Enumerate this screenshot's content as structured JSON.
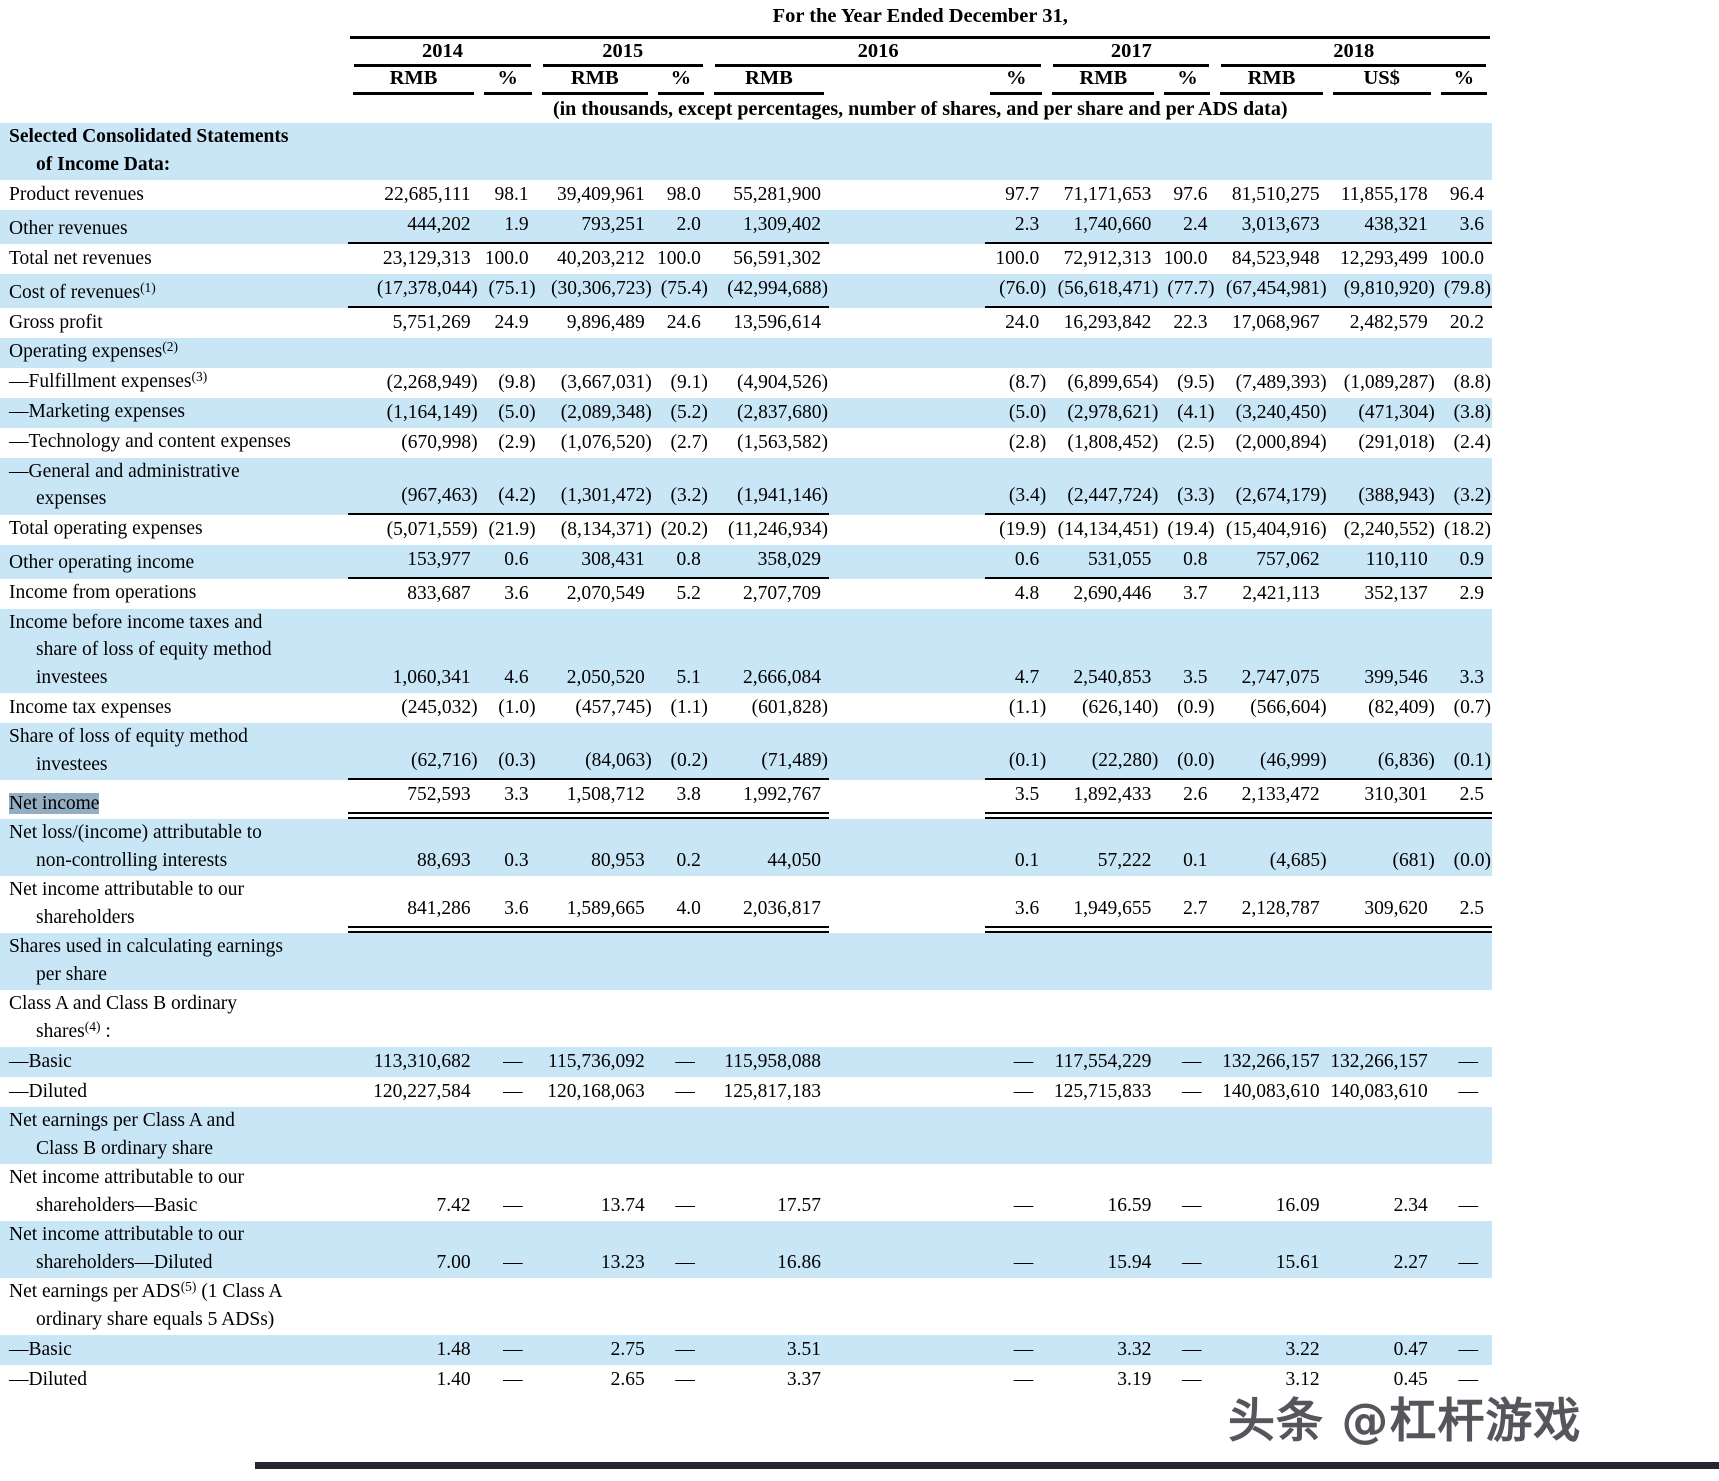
{
  "header": {
    "title": "For the Year Ended December 31,",
    "years": [
      "2014",
      "2015",
      "2016",
      "2017",
      "2018"
    ],
    "units": [
      "RMB",
      "%",
      "RMB",
      "%",
      "RMB",
      "%",
      "RMB",
      "%",
      "RMB",
      "US$",
      "%"
    ],
    "note": "(in thousands, except percentages, number of shares, and per share and per ADS data)"
  },
  "rows": [
    {
      "label": "Selected Consolidated Statements\nof Income Data:",
      "bg": "blue",
      "bold": true,
      "values": []
    },
    {
      "label": "Product revenues",
      "bg": "white",
      "values": [
        "22,685,111",
        "98.1",
        "39,409,961",
        "98.0",
        "55,281,900",
        "97.7",
        "71,171,653",
        "97.6",
        "81,510,275",
        "11,855,178",
        "96.4"
      ]
    },
    {
      "label": "Other revenues",
      "bg": "blue",
      "border": "single",
      "values": [
        "444,202",
        "1.9",
        "793,251",
        "2.0",
        "1,309,402",
        "2.3",
        "1,740,660",
        "2.4",
        "3,013,673",
        "438,321",
        "3.6"
      ]
    },
    {
      "label": "Total net revenues",
      "bg": "white",
      "values": [
        "23,129,313",
        "100.0",
        "40,203,212",
        "100.0",
        "56,591,302",
        "100.0",
        "72,912,313",
        "100.0",
        "84,523,948",
        "12,293,499",
        "100.0"
      ]
    },
    {
      "label": "Cost of revenues^(1)",
      "bg": "blue",
      "border": "single",
      "values": [
        "(17,378,044)",
        "(75.1)",
        "(30,306,723)",
        "(75.4)",
        "(42,994,688)",
        "(76.0)",
        "(56,618,471)",
        "(77.7)",
        "(67,454,981)",
        "(9,810,920)",
        "(79.8)"
      ]
    },
    {
      "label": "Gross profit",
      "bg": "white",
      "values": [
        "5,751,269",
        "24.9",
        "9,896,489",
        "24.6",
        "13,596,614",
        "24.0",
        "16,293,842",
        "22.3",
        "17,068,967",
        "2,482,579",
        "20.2"
      ]
    },
    {
      "label": "Operating expenses^(2)",
      "bg": "blue",
      "values": []
    },
    {
      "label": "—Fulfillment expenses^(3)",
      "bg": "white",
      "values": [
        "(2,268,949)",
        "(9.8)",
        "(3,667,031)",
        "(9.1)",
        "(4,904,526)",
        "(8.7)",
        "(6,899,654)",
        "(9.5)",
        "(7,489,393)",
        "(1,089,287)",
        "(8.8)"
      ]
    },
    {
      "label": "—Marketing expenses",
      "bg": "blue",
      "values": [
        "(1,164,149)",
        "(5.0)",
        "(2,089,348)",
        "(5.2)",
        "(2,837,680)",
        "(5.0)",
        "(2,978,621)",
        "(4.1)",
        "(3,240,450)",
        "(471,304)",
        "(3.8)"
      ]
    },
    {
      "label": "—Technology and content expenses",
      "bg": "white",
      "values": [
        "(670,998)",
        "(2.9)",
        "(1,076,520)",
        "(2.7)",
        "(1,563,582)",
        "(2.8)",
        "(1,808,452)",
        "(2.5)",
        "(2,000,894)",
        "(291,018)",
        "(2.4)"
      ]
    },
    {
      "label": "—General and administrative\nexpenses",
      "bg": "blue",
      "border": "single",
      "values": [
        "(967,463)",
        "(4.2)",
        "(1,301,472)",
        "(3.2)",
        "(1,941,146)",
        "(3.4)",
        "(2,447,724)",
        "(3.3)",
        "(2,674,179)",
        "(388,943)",
        "(3.2)"
      ]
    },
    {
      "label": "Total operating expenses",
      "bg": "white",
      "values": [
        "(5,071,559)",
        "(21.9)",
        "(8,134,371)",
        "(20.2)",
        "(11,246,934)",
        "(19.9)",
        "(14,134,451)",
        "(19.4)",
        "(15,404,916)",
        "(2,240,552)",
        "(18.2)"
      ]
    },
    {
      "label": "Other operating income",
      "bg": "blue",
      "border": "single",
      "values": [
        "153,977",
        "0.6",
        "308,431",
        "0.8",
        "358,029",
        "0.6",
        "531,055",
        "0.8",
        "757,062",
        "110,110",
        "0.9"
      ]
    },
    {
      "label": "Income from operations",
      "bg": "white",
      "values": [
        "833,687",
        "3.6",
        "2,070,549",
        "5.2",
        "2,707,709",
        "4.8",
        "2,690,446",
        "3.7",
        "2,421,113",
        "352,137",
        "2.9"
      ]
    },
    {
      "label": "Income before income taxes and\nshare of loss of equity method\ninvestees",
      "bg": "blue",
      "values": [
        "1,060,341",
        "4.6",
        "2,050,520",
        "5.1",
        "2,666,084",
        "4.7",
        "2,540,853",
        "3.5",
        "2,747,075",
        "399,546",
        "3.3"
      ]
    },
    {
      "label": "Income tax expenses",
      "bg": "white",
      "values": [
        "(245,032)",
        "(1.0)",
        "(457,745)",
        "(1.1)",
        "(601,828)",
        "(1.1)",
        "(626,140)",
        "(0.9)",
        "(566,604)",
        "(82,409)",
        "(0.7)"
      ]
    },
    {
      "label": "Share of loss of equity method\ninvestees",
      "bg": "blue",
      "border": "single",
      "values": [
        "(62,716)",
        "(0.3)",
        "(84,063)",
        "(0.2)",
        "(71,489)",
        "(0.1)",
        "(22,280)",
        "(0.0)",
        "(46,999)",
        "(6,836)",
        "(0.1)"
      ]
    },
    {
      "label": "Net income",
      "bg": "white",
      "border": "double",
      "highlight": true,
      "values": [
        "752,593",
        "3.3",
        "1,508,712",
        "3.8",
        "1,992,767",
        "3.5",
        "1,892,433",
        "2.6",
        "2,133,472",
        "310,301",
        "2.5"
      ]
    },
    {
      "label": "Net loss/(income) attributable to\nnon-controlling interests",
      "bg": "blue",
      "values": [
        "88,693",
        "0.3",
        "80,953",
        "0.2",
        "44,050",
        "0.1",
        "57,222",
        "0.1",
        "(4,685)",
        "(681)",
        "(0.0)"
      ]
    },
    {
      "label": "Net income attributable to our\nshareholders",
      "bg": "white",
      "border": "double",
      "values": [
        "841,286",
        "3.6",
        "1,589,665",
        "4.0",
        "2,036,817",
        "3.6",
        "1,949,655",
        "2.7",
        "2,128,787",
        "309,620",
        "2.5"
      ]
    },
    {
      "label": "Shares used in calculating earnings\nper share",
      "bg": "blue",
      "values": []
    },
    {
      "label": "Class A and Class B ordinary\nshares^(4) :",
      "bg": "white",
      "values": []
    },
    {
      "label": "—Basic",
      "bg": "blue",
      "values": [
        "113,310,682",
        "—",
        "115,736,092",
        "—",
        "115,958,088",
        "—",
        "117,554,229",
        "—",
        "132,266,157",
        "132,266,157",
        "—"
      ]
    },
    {
      "label": "—Diluted",
      "bg": "white",
      "values": [
        "120,227,584",
        "—",
        "120,168,063",
        "—",
        "125,817,183",
        "—",
        "125,715,833",
        "—",
        "140,083,610",
        "140,083,610",
        "—"
      ]
    },
    {
      "label": "Net earnings per Class A and\nClass B ordinary share",
      "bg": "blue",
      "values": []
    },
    {
      "label": "Net income attributable to our\nshareholders—Basic",
      "bg": "white",
      "values": [
        "7.42",
        "—",
        "13.74",
        "—",
        "17.57",
        "—",
        "16.59",
        "—",
        "16.09",
        "2.34",
        "—"
      ]
    },
    {
      "label": "Net income attributable to our\nshareholders—Diluted",
      "bg": "blue",
      "values": [
        "7.00",
        "—",
        "13.23",
        "—",
        "16.86",
        "—",
        "15.94",
        "—",
        "15.61",
        "2.27",
        "—"
      ]
    },
    {
      "label": "Net earnings per ADS^(5) (1 Class A\nordinary share equals 5 ADSs)",
      "bg": "white",
      "values": []
    },
    {
      "label": "—Basic",
      "bg": "blue",
      "values": [
        "1.48",
        "—",
        "2.75",
        "—",
        "3.51",
        "—",
        "3.32",
        "—",
        "3.22",
        "0.47",
        "—"
      ]
    },
    {
      "label": "—Diluted",
      "bg": "white",
      "values": [
        "1.40",
        "—",
        "2.65",
        "—",
        "3.37",
        "—",
        "3.19",
        "—",
        "3.12",
        "0.45",
        "—"
      ]
    }
  ],
  "watermark": {
    "text": "头条 @杠杆游戏"
  },
  "colors": {
    "row_blue": "#c9e6f7",
    "highlight": "#93aec2",
    "watermark_text": "#38383f",
    "bottom_bar": "#26272e",
    "rule": "#000000"
  }
}
